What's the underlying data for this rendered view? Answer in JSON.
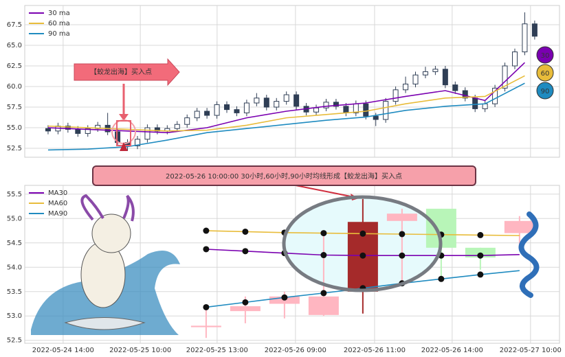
{
  "chart_data": [
    {
      "type": "candlestick",
      "x": [
        0,
        1,
        2,
        3,
        4,
        5,
        6,
        7,
        8,
        9,
        10,
        11,
        12,
        13,
        14,
        15,
        16,
        17,
        18,
        19,
        20,
        21,
        22,
        23,
        24,
        25,
        26,
        27,
        28,
        29,
        30,
        31,
        32,
        33,
        34,
        35,
        36,
        37,
        38,
        39,
        40,
        41,
        42,
        43,
        44,
        45,
        46,
        47,
        48,
        49
      ],
      "open": [
        54.9,
        54.6,
        55.2,
        54.8,
        54.3,
        54.9,
        55.3,
        54.5,
        53.2,
        52.8,
        53.6,
        55.0,
        54.6,
        54.9,
        55.4,
        56.2,
        57.0,
        56.5,
        57.8,
        57.2,
        56.8,
        58.0,
        58.6,
        57.5,
        58.2,
        59.0,
        57.6,
        56.9,
        57.4,
        58.1,
        57.6,
        56.8,
        57.9,
        56.4,
        56.0,
        58.2,
        59.6,
        60.3,
        61.4,
        61.8,
        62.1,
        60.2,
        59.5,
        58.6,
        57.3,
        57.9,
        59.8,
        62.5,
        64.2,
        67.6
      ],
      "high": [
        55.3,
        55.6,
        55.6,
        55.2,
        55.3,
        55.7,
        56.8,
        54.9,
        53.6,
        54.0,
        55.4,
        55.4,
        55.3,
        55.8,
        56.6,
        57.4,
        57.4,
        58.2,
        58.2,
        57.6,
        58.4,
        59.2,
        59.0,
        58.6,
        59.4,
        59.4,
        58.0,
        57.8,
        58.5,
        58.5,
        58.0,
        58.3,
        58.3,
        56.8,
        58.6,
        60.0,
        61.2,
        61.8,
        62.4,
        62.5,
        62.5,
        60.6,
        59.9,
        59.0,
        58.3,
        60.2,
        62.9,
        64.6,
        69.0,
        68.0
      ],
      "low": [
        54.2,
        54.2,
        54.4,
        53.9,
        53.9,
        54.5,
        54.1,
        52.8,
        52.2,
        52.4,
        53.2,
        54.2,
        54.2,
        54.5,
        55.0,
        55.8,
        56.1,
        56.1,
        56.8,
        56.4,
        56.4,
        57.6,
        57.1,
        57.1,
        57.8,
        57.2,
        56.5,
        56.5,
        57.0,
        57.2,
        56.4,
        56.4,
        56.0,
        55.2,
        55.6,
        57.8,
        59.2,
        59.9,
        61.0,
        61.4,
        59.8,
        59.1,
        58.2,
        56.9,
        56.9,
        57.5,
        59.4,
        62.1,
        63.8,
        65.7
      ],
      "close": [
        54.6,
        55.2,
        54.8,
        54.3,
        54.9,
        55.3,
        54.5,
        53.2,
        52.8,
        53.6,
        55.0,
        54.6,
        54.9,
        55.4,
        56.2,
        57.0,
        56.5,
        57.8,
        57.2,
        56.8,
        58.0,
        58.6,
        57.5,
        58.2,
        59.0,
        57.6,
        56.9,
        57.4,
        58.1,
        57.6,
        56.8,
        57.9,
        56.4,
        56.0,
        58.2,
        59.6,
        60.3,
        61.4,
        61.8,
        62.1,
        60.2,
        59.5,
        58.6,
        57.3,
        57.9,
        59.8,
        62.5,
        64.2,
        67.6,
        66.1
      ],
      "up_color": "#ffffff",
      "down_color": "#2f3e55",
      "xlim": [
        -2.35,
        51.5
      ],
      "ylim": [
        51.42,
        69.83
      ],
      "yticks": [
        52.5,
        {
          "value": 55,
          "label": "55.0"
        },
        57.5,
        {
          "value": 60,
          "label": "60.0"
        },
        62.5,
        {
          "value": 65,
          "label": "65.0"
        },
        67.5
      ],
      "grid": true,
      "legend": "upper left",
      "series": [
        {
          "name": "30 ma",
          "color": "#7a00b0",
          "x": [
            0,
            4,
            8,
            12,
            16,
            20,
            24,
            28,
            32,
            36,
            40,
            44,
            48
          ],
          "values": [
            55.0,
            54.8,
            54.6,
            54.4,
            55.0,
            56.2,
            57.0,
            57.6,
            58.0,
            58.8,
            59.5,
            58.3,
            62.9
          ]
        },
        {
          "name": "60 ma",
          "color": "#e8bc3a",
          "x": [
            0,
            4,
            8,
            12,
            16,
            20,
            24,
            28,
            32,
            36,
            40,
            44,
            48
          ],
          "values": [
            55.2,
            55.0,
            54.8,
            54.6,
            54.7,
            55.3,
            56.2,
            56.6,
            57.0,
            57.9,
            58.6,
            58.8,
            61.3
          ]
        },
        {
          "name": "90 ma",
          "color": "#1f8bc0",
          "x": [
            0,
            4,
            8,
            12,
            16,
            20,
            24,
            28,
            32,
            36,
            40,
            44,
            48
          ],
          "values": [
            52.3,
            52.4,
            52.7,
            53.5,
            54.4,
            54.9,
            55.4,
            55.9,
            56.3,
            57.1,
            57.6,
            57.9,
            60.4
          ]
        }
      ],
      "annotation": "【蛟龙出海】买入点",
      "badges": [
        "30",
        "60",
        "90"
      ]
    },
    {
      "type": "candlestick",
      "title": "2022-05-26 10:00:00 30小时,60小时,90小时均线形成【蛟龙出海】买入点",
      "x": [
        0,
        1,
        2,
        3,
        4,
        5,
        6,
        7,
        8
      ],
      "open": [
        52.77,
        53.1,
        53.25,
        53.02,
        53.5,
        54.95,
        55.2,
        54.4,
        54.7
      ],
      "high": [
        53.17,
        53.4,
        53.5,
        54.7,
        55.4,
        55.2,
        55.2,
        54.4,
        55.05
      ],
      "low": [
        52.55,
        52.85,
        52.95,
        53.0,
        53.05,
        53.65,
        53.75,
        53.95,
        54.35
      ],
      "close": [
        52.8,
        53.2,
        53.4,
        53.4,
        54.93,
        55.1,
        54.4,
        54.2,
        54.95
      ],
      "up_color": "#ffb6c1",
      "down_color": "#b8f5b8",
      "highlight": {
        "index": 4,
        "color": "#a52a2a"
      },
      "xlim": [
        -4.63,
        9.02
      ],
      "ylim": [
        52.44,
        55.68
      ],
      "xticks": [
        {
          "value": -3.65,
          "label": "2022-05-24 14:00"
        },
        {
          "value": -1.68,
          "label": "2022-05-25 10:00"
        },
        {
          "value": 0.28,
          "label": "2022-05-25 13:00"
        },
        {
          "value": 2.28,
          "label": "2022-05-26 09:00"
        },
        {
          "value": 4.3,
          "label": "2022-05-26 11:00"
        },
        {
          "value": 6.28,
          "label": "2022-05-26 14:00"
        },
        {
          "value": 8.28,
          "label": "2022-05-27 10:00"
        }
      ],
      "yticks": [
        52.5,
        {
          "value": 53,
          "label": "53.0"
        },
        53.5,
        {
          "value": 54,
          "label": "54.0"
        },
        54.5,
        {
          "value": 55,
          "label": "55.0"
        },
        55.5
      ],
      "grid": true,
      "legend": "upper left",
      "markers": true,
      "series": [
        {
          "name": "MA30",
          "color": "#7a00b0",
          "x": [
            0,
            1,
            2,
            3,
            4,
            5,
            6,
            7,
            8
          ],
          "values": [
            54.37,
            54.33,
            54.29,
            54.25,
            54.24,
            54.24,
            54.24,
            54.24,
            54.26
          ]
        },
        {
          "name": "MA60",
          "color": "#e8bc3a",
          "x": [
            0,
            1,
            2,
            3,
            4,
            5,
            6,
            7,
            8
          ],
          "values": [
            54.75,
            54.73,
            54.71,
            54.7,
            54.69,
            54.68,
            54.67,
            54.66,
            54.65
          ]
        },
        {
          "name": "MA90",
          "color": "#1f8bc0",
          "x": [
            0,
            1,
            2,
            3,
            4,
            5,
            6,
            7,
            8
          ],
          "values": [
            53.18,
            53.28,
            53.38,
            53.47,
            53.57,
            53.67,
            53.76,
            53.85,
            53.93
          ]
        }
      ]
    }
  ]
}
